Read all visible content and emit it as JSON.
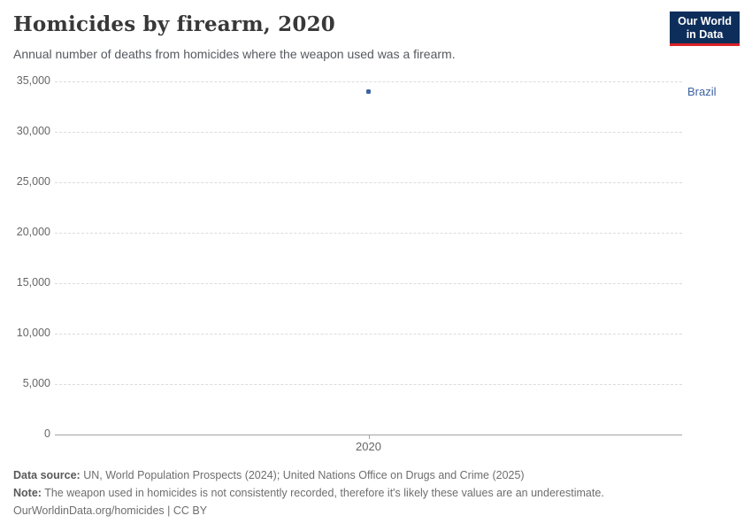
{
  "header": {
    "title": "Homicides by firearm, 2020",
    "subtitle": "Annual number of deaths from homicides where the weapon used was a firearm.",
    "logo": {
      "line1": "Our World",
      "line2": "in Data"
    }
  },
  "chart_data": {
    "type": "scatter",
    "title": "Homicides by firearm, 2020",
    "x": [
      2020
    ],
    "xtick_labels": [
      "2020"
    ],
    "series": [
      {
        "name": "Brazil",
        "values": [
          33950
        ],
        "color": "#3d63a0",
        "label_color": "#3d63a0"
      }
    ],
    "ylim": [
      0,
      35000
    ],
    "yticks": [
      0,
      5000,
      10000,
      15000,
      20000,
      25000,
      30000,
      35000
    ],
    "ytick_labels": [
      "0",
      "5,000",
      "10,000",
      "15,000",
      "20,000",
      "25,000",
      "30,000",
      "35,000"
    ],
    "grid": "horizontal-dashed",
    "legend_position": "label-right-of-point"
  },
  "footer": {
    "datasource_label": "Data source:",
    "datasource_text": " UN, World Population Prospects (2024); United Nations Office on Drugs and Crime (2025)",
    "note_label": "Note:",
    "note_text": " The weapon used in homicides is not consistently recorded, therefore it's likely these values are an underestimate.",
    "link": "OurWorldinData.org/homicides | CC BY"
  },
  "colors": {
    "accent_blue": "#3d63a0",
    "logo_navy": "#0d2d5a",
    "logo_red": "#dc2227",
    "gridline": "#dcdcdc",
    "axis": "#a3a3a3",
    "tick_text": "#666666"
  }
}
